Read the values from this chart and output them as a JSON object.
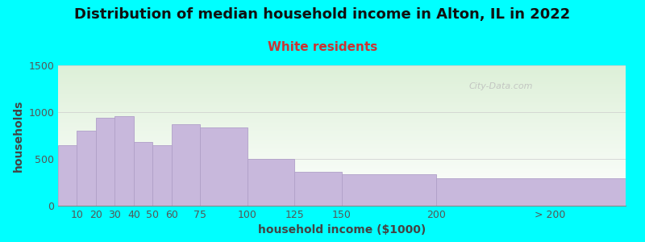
{
  "title": "Distribution of median household income in Alton, IL in 2022",
  "subtitle": "White residents",
  "xlabel": "household income ($1000)",
  "ylabel": "households",
  "background_color": "#00FFFF",
  "plot_bg_top": "#ddf0d8",
  "plot_bg_bottom": "#ffffff",
  "bar_color": "#c8b8dc",
  "bar_edge_color": "#b0a0c8",
  "bin_lefts": [
    0,
    10,
    20,
    30,
    40,
    50,
    60,
    75,
    100,
    125,
    150,
    200
  ],
  "bin_rights": [
    10,
    20,
    30,
    40,
    50,
    60,
    75,
    100,
    125,
    150,
    200,
    300
  ],
  "bin_labels": [
    "10",
    "20",
    "30",
    "40",
    "50",
    "60",
    "75",
    "100",
    "125",
    "150",
    "200",
    "> 200"
  ],
  "values": [
    650,
    800,
    940,
    960,
    680,
    650,
    870,
    840,
    500,
    360,
    340,
    290
  ],
  "ylim": [
    0,
    1500
  ],
  "yticks": [
    0,
    500,
    1000,
    1500
  ],
  "title_fontsize": 13,
  "subtitle_fontsize": 11,
  "axis_label_fontsize": 10,
  "tick_fontsize": 9,
  "watermark": "City-Data.com"
}
